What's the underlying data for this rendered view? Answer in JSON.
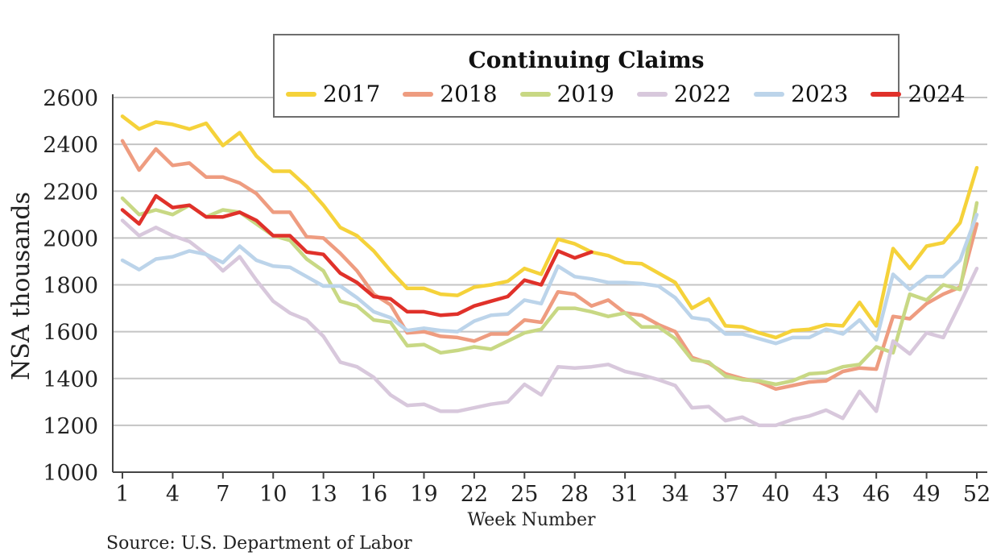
{
  "chart_data": {
    "type": "line",
    "title": "Continuing Claims",
    "xlabel": "Week Number",
    "ylabel": "NSA thousands",
    "source": "Source: U.S. Department of Labor",
    "ylim": [
      1000,
      2600
    ],
    "yticks": [
      1000,
      1200,
      1400,
      1600,
      1800,
      2000,
      2200,
      2400,
      2600
    ],
    "xlim": [
      1,
      52
    ],
    "xticks": [
      1,
      4,
      7,
      10,
      13,
      16,
      19,
      22,
      25,
      28,
      31,
      34,
      37,
      40,
      43,
      46,
      49,
      52
    ],
    "grid": "horizontal",
    "legend_position": "top",
    "series": [
      {
        "name": "2017",
        "color": "#f5d23a",
        "values": [
          2520,
          2465,
          2495,
          2485,
          2465,
          2490,
          2395,
          2450,
          2350,
          2285,
          2285,
          2220,
          2140,
          2045,
          2010,
          1945,
          1860,
          1785,
          1785,
          1760,
          1755,
          1790,
          1800,
          1815,
          1870,
          1845,
          1995,
          1975,
          1940,
          1925,
          1895,
          1890,
          1850,
          1810,
          1700,
          1740,
          1625,
          1620,
          1595,
          1575,
          1605,
          1610,
          1630,
          1625,
          1725,
          1625,
          1955,
          1870,
          1965,
          1980,
          2065,
          2300
        ]
      },
      {
        "name": "2018",
        "color": "#ee9c80",
        "values": [
          2415,
          2290,
          2380,
          2310,
          2320,
          2260,
          2260,
          2235,
          2190,
          2110,
          2110,
          2005,
          2000,
          1935,
          1860,
          1760,
          1715,
          1595,
          1600,
          1580,
          1575,
          1560,
          1590,
          1590,
          1650,
          1640,
          1770,
          1760,
          1710,
          1735,
          1680,
          1670,
          1630,
          1600,
          1490,
          1465,
          1420,
          1400,
          1385,
          1355,
          1370,
          1385,
          1390,
          1430,
          1445,
          1440,
          1665,
          1655,
          1720,
          1760,
          1790,
          2060
        ]
      },
      {
        "name": "2019",
        "color": "#c8d884",
        "values": [
          2170,
          2100,
          2120,
          2100,
          2140,
          2090,
          2120,
          2110,
          2060,
          2010,
          1990,
          1910,
          1860,
          1730,
          1710,
          1650,
          1640,
          1540,
          1545,
          1510,
          1520,
          1535,
          1525,
          1560,
          1595,
          1610,
          1700,
          1700,
          1685,
          1665,
          1680,
          1620,
          1620,
          1570,
          1480,
          1470,
          1410,
          1395,
          1390,
          1375,
          1390,
          1420,
          1425,
          1450,
          1460,
          1535,
          1510,
          1760,
          1735,
          1800,
          1780,
          2150
        ]
      },
      {
        "name": "2022",
        "color": "#d8c8dc",
        "values": [
          2075,
          2010,
          2045,
          2010,
          1985,
          1930,
          1860,
          1920,
          1820,
          1730,
          1680,
          1650,
          1580,
          1470,
          1450,
          1405,
          1330,
          1285,
          1290,
          1260,
          1260,
          1275,
          1290,
          1300,
          1375,
          1330,
          1450,
          1445,
          1450,
          1460,
          1430,
          1415,
          1395,
          1370,
          1275,
          1280,
          1220,
          1235,
          1200,
          1200,
          1225,
          1240,
          1265,
          1230,
          1345,
          1260,
          1560,
          1505,
          1595,
          1575,
          1720,
          1870
        ]
      },
      {
        "name": "2023",
        "color": "#bcd4ea",
        "values": [
          1905,
          1865,
          1910,
          1920,
          1945,
          1930,
          1895,
          1965,
          1905,
          1880,
          1875,
          1835,
          1795,
          1795,
          1745,
          1685,
          1660,
          1605,
          1615,
          1605,
          1600,
          1645,
          1670,
          1675,
          1735,
          1720,
          1880,
          1835,
          1825,
          1810,
          1810,
          1805,
          1795,
          1745,
          1660,
          1650,
          1590,
          1590,
          1570,
          1550,
          1575,
          1575,
          1610,
          1590,
          1650,
          1565,
          1845,
          1780,
          1835,
          1835,
          1905,
          2100
        ]
      },
      {
        "name": "2024",
        "color": "#e0312a",
        "values": [
          2120,
          2060,
          2180,
          2130,
          2140,
          2090,
          2090,
          2110,
          2075,
          2010,
          2010,
          1940,
          1930,
          1850,
          1810,
          1750,
          1740,
          1685,
          1685,
          1670,
          1675,
          1710,
          1730,
          1750,
          1820,
          1800,
          1945,
          1915,
          1940
        ]
      }
    ]
  }
}
